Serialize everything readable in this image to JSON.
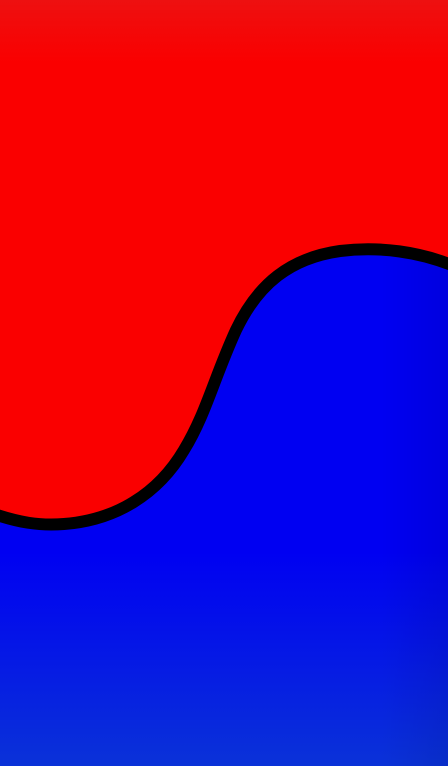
{
  "scene": {
    "colors": {
      "upper_region": "#fa0000",
      "upper_region_top": "#ee1010",
      "lower_region": "#0000f2",
      "lower_region_bottom": "#0a32d8",
      "divider_curve": "#000000"
    }
  }
}
